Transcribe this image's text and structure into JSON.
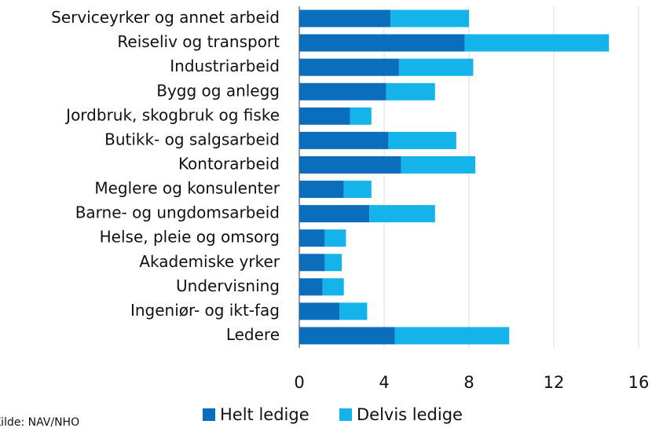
{
  "chart_data": {
    "type": "stacked-bar-horizontal",
    "categories": [
      "Serviceyrker og annet arbeid",
      "Reiseliv og transport",
      "Industriarbeid",
      "Bygg og anlegg",
      "Jordbruk, skogbruk og fiske",
      "Butikk- og salgsarbeid",
      "Kontorarbeid",
      "Meglere og konsulenter",
      "Barne- og ungdomsarbeid",
      "Helse, pleie og omsorg",
      "Akademiske yrker",
      "Undervisning",
      "Ingeniør- og ikt-fag",
      "Ledere"
    ],
    "series": [
      {
        "name": "Helt ledige",
        "color": "#0a6ebd",
        "values": [
          4.3,
          7.8,
          4.7,
          4.1,
          2.4,
          4.2,
          4.8,
          2.1,
          3.3,
          1.2,
          1.2,
          1.1,
          1.9,
          4.5
        ]
      },
      {
        "name": "Delvis ledige",
        "color": "#14b4ea",
        "values": [
          3.7,
          6.8,
          3.5,
          2.3,
          1.0,
          3.2,
          3.5,
          1.3,
          3.1,
          1.0,
          0.8,
          1.0,
          1.3,
          5.4
        ]
      }
    ],
    "xlim": [
      0,
      16
    ],
    "xticks": [
      0,
      4,
      8,
      12,
      16
    ],
    "grid": true,
    "legend": "bottom",
    "source": "Kilde: NAV/NHO"
  }
}
